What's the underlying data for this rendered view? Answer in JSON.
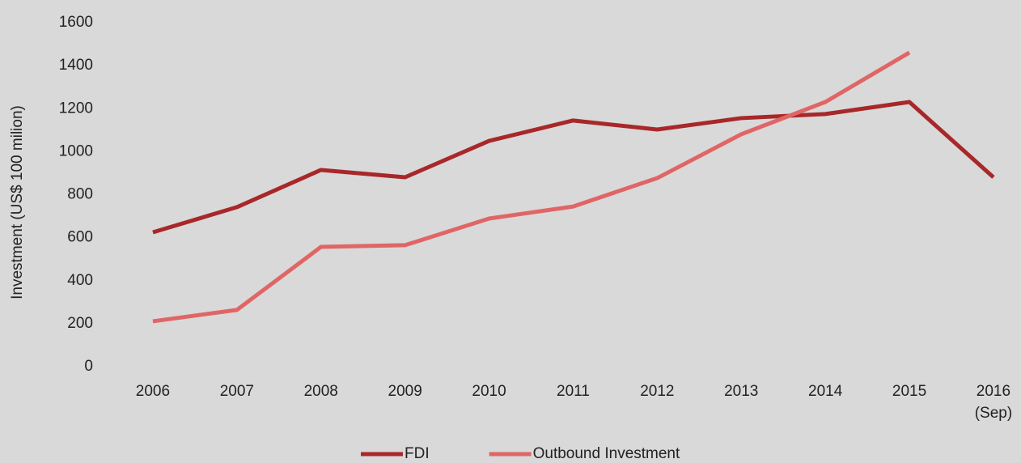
{
  "chart_data": {
    "type": "line",
    "y_label": "Investment (US$ 100 milion)",
    "categories": [
      "2006",
      "2007",
      "2008",
      "2009",
      "2010",
      "2011",
      "2012",
      "2013",
      "2014",
      "2015",
      "2016 (Sep)"
    ],
    "series": [
      {
        "name": "FDI",
        "color": "#a8282a",
        "values": [
          625,
          742,
          915,
          881,
          1050,
          1145,
          1103,
          1156,
          1175,
          1231,
          881
        ]
      },
      {
        "name": "Outbound Investment",
        "color": "#e06666",
        "values": [
          211,
          264,
          557,
          565,
          689,
          745,
          877,
          1081,
          1231,
          1461,
          null
        ]
      }
    ],
    "ylim": [
      0,
      1600
    ],
    "yticks": [
      0,
      200,
      400,
      600,
      800,
      1000,
      1200,
      1400,
      1600
    ],
    "grid": false,
    "legend": "bottom"
  }
}
